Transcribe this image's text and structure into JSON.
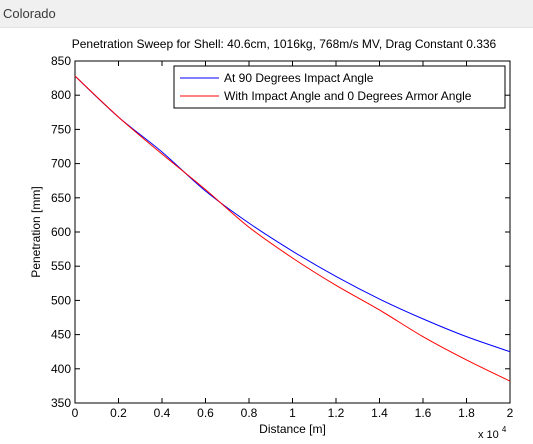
{
  "window": {
    "title": "Colorado"
  },
  "chart_data": {
    "type": "line",
    "title": "Penetration Sweep for Shell: 40.6cm, 1016kg, 768m/s MV, Drag Constant 0.336",
    "xlabel": "Distance [m]",
    "ylabel": "Penetration [mm]",
    "x_multiplier_label": "x 10",
    "x_multiplier_exponent": "4",
    "xlim": [
      0,
      20000
    ],
    "ylim": [
      350,
      850
    ],
    "xticks": [
      0,
      2000,
      4000,
      6000,
      8000,
      10000,
      12000,
      14000,
      16000,
      18000,
      20000
    ],
    "xtick_labels": [
      "0",
      "0.2",
      "0.4",
      "0.6",
      "0.8",
      "1",
      "1.2",
      "1.4",
      "1.6",
      "1.8",
      "2"
    ],
    "yticks": [
      350,
      400,
      450,
      500,
      550,
      600,
      650,
      700,
      750,
      800,
      850
    ],
    "ytick_labels": [
      "350",
      "400",
      "450",
      "500",
      "550",
      "600",
      "650",
      "700",
      "750",
      "800",
      "850"
    ],
    "grid": false,
    "legend_position": "top-right",
    "x": [
      0,
      2000,
      4000,
      6000,
      8000,
      10000,
      12000,
      14000,
      16000,
      18000,
      20000
    ],
    "series": [
      {
        "name": "At 90 Degrees Impact Angle",
        "color": "#0000ff",
        "values": [
          828,
          768,
          717,
          660,
          613,
          572,
          535,
          502,
          473,
          447,
          425
        ]
      },
      {
        "name": "With Impact Angle and 0 Degrees Armor Angle",
        "color": "#ff0000",
        "values": [
          828,
          768,
          714,
          662,
          607,
          562,
          522,
          486,
          447,
          413,
          382
        ]
      }
    ]
  }
}
